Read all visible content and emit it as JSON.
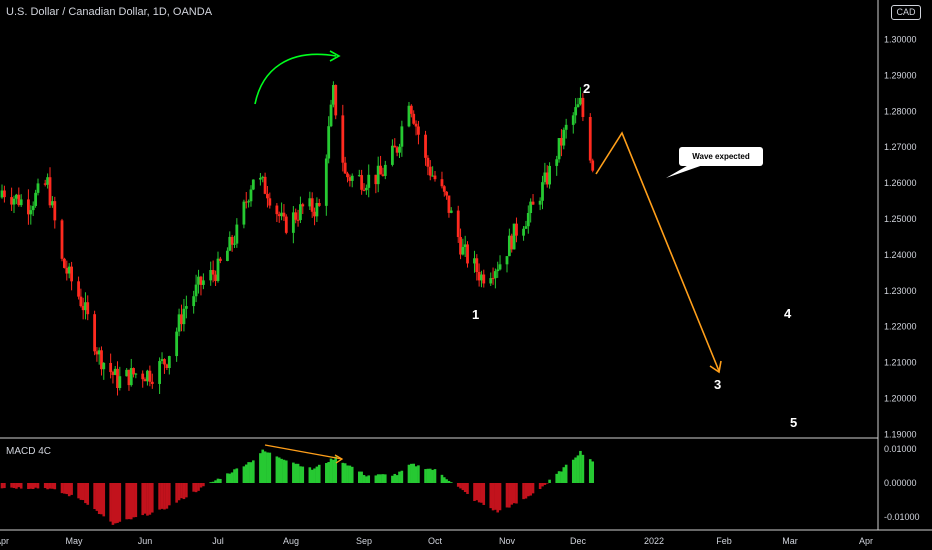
{
  "header": {
    "title": "U.S. Dollar / Canadian Dollar, 1D, OANDA"
  },
  "price_scale": {
    "currency": "CAD"
  },
  "macd": {
    "label": "MACD 4C"
  },
  "annotation": {
    "callout_text": "Wave expected"
  },
  "waves": {
    "w1": "1",
    "w2": "2",
    "w3": "3",
    "w4": "4",
    "w5": "5"
  },
  "colors": {
    "up": "#26c932",
    "down": "#ff2a1f",
    "projection": "#ff9f1a",
    "arrow": "#00ff1e",
    "macd_up": "#26c932",
    "macd_down": "#c2121c",
    "background": "#000000"
  },
  "chart_data": [
    {
      "type": "candlestick",
      "title": "U.S. Dollar / Canadian Dollar, 1D, OANDA",
      "x_axis": {
        "ticks": [
          "Apr",
          "May",
          "Jun",
          "Jul",
          "Aug",
          "Sep",
          "Oct",
          "Nov",
          "Dec",
          "2022",
          "Feb",
          "Mar",
          "Apr"
        ]
      },
      "y_axis": {
        "ticks": [
          "1.19000",
          "1.20000",
          "1.21000",
          "1.22000",
          "1.23000",
          "1.24000",
          "1.25000",
          "1.26000",
          "1.27000",
          "1.28000",
          "1.29000",
          "1.30000"
        ],
        "range": [
          1.189,
          1.311
        ]
      },
      "anchors": [
        {
          "date": "2021-04-01",
          "close": 1.258
        },
        {
          "date": "2021-04-12",
          "close": 1.254
        },
        {
          "date": "2021-04-20",
          "close": 1.26
        },
        {
          "date": "2021-04-26",
          "close": 1.238
        },
        {
          "date": "2021-05-05",
          "close": 1.226
        },
        {
          "date": "2021-05-12",
          "close": 1.212
        },
        {
          "date": "2021-05-20",
          "close": 1.205
        },
        {
          "date": "2021-05-28",
          "close": 1.207
        },
        {
          "date": "2021-06-04",
          "close": 1.207
        },
        {
          "date": "2021-06-10",
          "close": 1.211
        },
        {
          "date": "2021-06-17",
          "close": 1.225
        },
        {
          "date": "2021-06-24",
          "close": 1.232
        },
        {
          "date": "2021-07-01",
          "close": 1.236
        },
        {
          "date": "2021-07-09",
          "close": 1.246
        },
        {
          "date": "2021-07-16",
          "close": 1.262
        },
        {
          "date": "2021-07-22",
          "close": 1.258
        },
        {
          "date": "2021-07-29",
          "close": 1.248
        },
        {
          "date": "2021-08-06",
          "close": 1.253
        },
        {
          "date": "2021-08-13",
          "close": 1.253
        },
        {
          "date": "2021-08-19",
          "close": 1.285
        },
        {
          "date": "2021-08-24",
          "close": 1.262
        },
        {
          "date": "2021-09-01",
          "close": 1.261
        },
        {
          "date": "2021-09-08",
          "close": 1.262
        },
        {
          "date": "2021-09-15",
          "close": 1.27
        },
        {
          "date": "2021-09-20",
          "close": 1.284
        },
        {
          "date": "2021-09-27",
          "close": 1.266
        },
        {
          "date": "2021-10-06",
          "close": 1.255
        },
        {
          "date": "2021-10-13",
          "close": 1.241
        },
        {
          "date": "2021-10-21",
          "close": 1.234
        },
        {
          "date": "2021-10-29",
          "close": 1.238
        },
        {
          "date": "2021-11-05",
          "close": 1.247
        },
        {
          "date": "2021-11-12",
          "close": 1.253
        },
        {
          "date": "2021-11-19",
          "close": 1.263
        },
        {
          "date": "2021-11-26",
          "close": 1.275
        },
        {
          "date": "2021-12-02",
          "close": 1.282
        },
        {
          "date": "2021-12-07",
          "close": 1.265
        }
      ]
    },
    {
      "type": "bar",
      "title": "MACD 4C",
      "y_axis": {
        "ticks": [
          "0.01000",
          "0.00000",
          "-0.01000"
        ]
      },
      "anchors": [
        {
          "date": "2021-04-01",
          "value": -0.0013
        },
        {
          "date": "2021-04-20",
          "value": -0.0015
        },
        {
          "date": "2021-05-05",
          "value": -0.005
        },
        {
          "date": "2021-05-18",
          "value": -0.0122
        },
        {
          "date": "2021-06-08",
          "value": -0.008
        },
        {
          "date": "2021-06-28",
          "value": 0.0
        },
        {
          "date": "2021-07-16",
          "value": 0.0068
        },
        {
          "date": "2021-07-20",
          "value": 0.0095
        },
        {
          "date": "2021-08-10",
          "value": 0.004
        },
        {
          "date": "2021-08-20",
          "value": 0.0075
        },
        {
          "date": "2021-09-02",
          "value": 0.0022
        },
        {
          "date": "2021-09-15",
          "value": 0.0025
        },
        {
          "date": "2021-09-21",
          "value": 0.0055
        },
        {
          "date": "2021-10-01",
          "value": 0.0038
        },
        {
          "date": "2021-10-08",
          "value": 0.0004
        },
        {
          "date": "2021-10-18",
          "value": -0.005
        },
        {
          "date": "2021-10-28",
          "value": -0.0085
        },
        {
          "date": "2021-11-08",
          "value": -0.005
        },
        {
          "date": "2021-11-18",
          "value": 0.0
        },
        {
          "date": "2021-11-26",
          "value": 0.005
        },
        {
          "date": "2021-12-02",
          "value": 0.0092
        },
        {
          "date": "2021-12-07",
          "value": 0.0065
        }
      ]
    }
  ]
}
